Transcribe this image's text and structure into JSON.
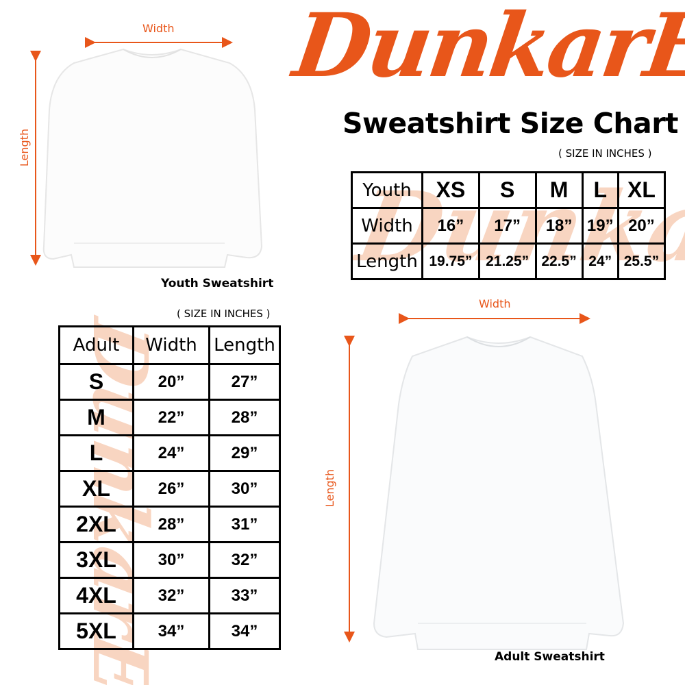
{
  "brand": {
    "logo_text": "DunkarE",
    "accent": "#e8561a"
  },
  "title": "Sweatshirt Size Chart",
  "units_note": "( SIZE IN INCHES )",
  "youth": {
    "caption": "Youth Sweatshirt",
    "width_label": "Width",
    "length_label": "Length",
    "header": [
      "Youth",
      "XS",
      "S",
      "M",
      "L",
      "XL"
    ],
    "rows": [
      [
        "Width",
        "16”",
        "17”",
        "18”",
        "19”",
        "20”"
      ],
      [
        "Length",
        "19.75”",
        "21.25”",
        "22.5”",
        "24”",
        "25.5”"
      ]
    ]
  },
  "adult": {
    "caption": "Adult Sweatshirt",
    "width_label": "Width",
    "length_label": "Length",
    "header": [
      "Adult",
      "Width",
      "Length"
    ],
    "rows": [
      [
        "S",
        "20”",
        "27”"
      ],
      [
        "M",
        "22”",
        "28”"
      ],
      [
        "L",
        "24”",
        "29”"
      ],
      [
        "XL",
        "26”",
        "30”"
      ],
      [
        "2XL",
        "28”",
        "31”"
      ],
      [
        "3XL",
        "30”",
        "32”"
      ],
      [
        "4XL",
        "32”",
        "33”"
      ],
      [
        "5XL",
        "34”",
        "34”"
      ]
    ]
  }
}
